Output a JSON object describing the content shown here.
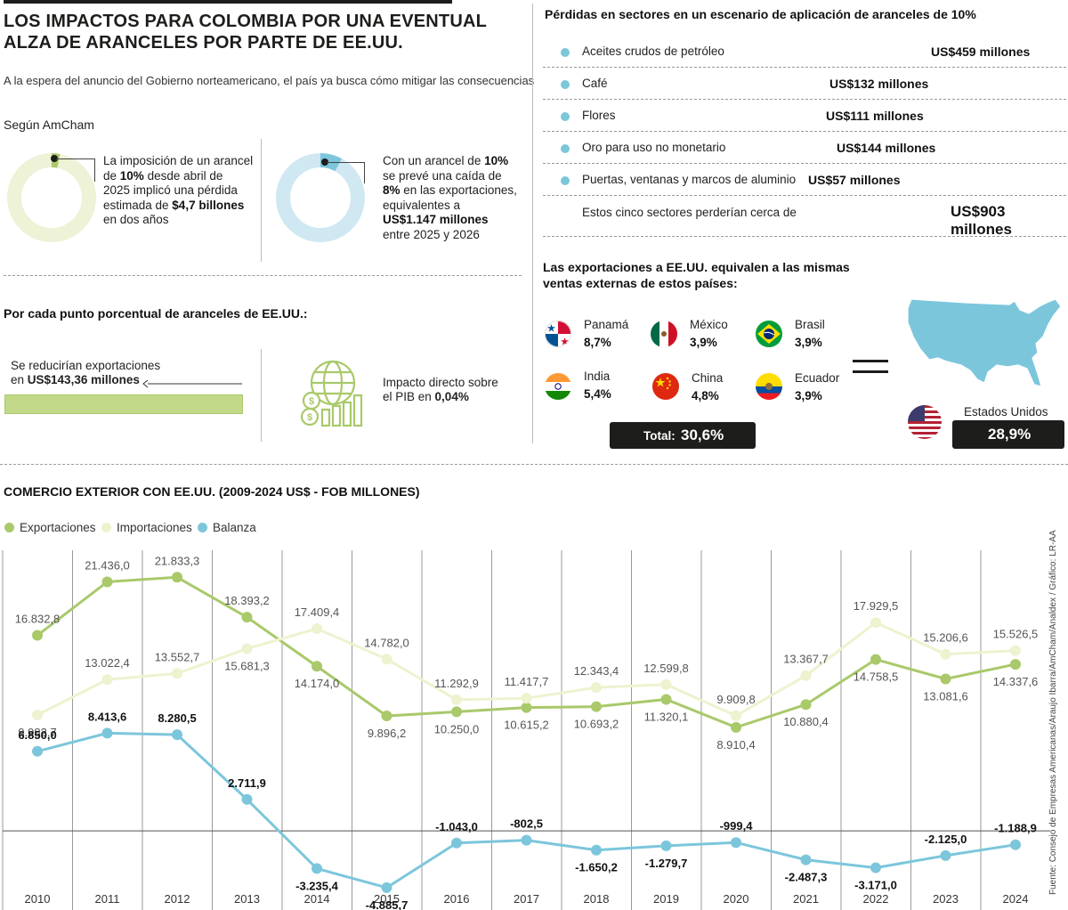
{
  "header": {
    "headline_line1": "LOS IMPACTOS PARA COLOMBIA POR UNA EVENTUAL",
    "headline_line2": "ALZA DE ARANCELES POR PARTE DE EE.UU.",
    "subtitle": "A la espera del anuncio del Gobierno norteamericano, el país ya busca cómo mitigar las consecuencias"
  },
  "amcham": {
    "label": "Según AmCham",
    "stat1": {
      "line1": "La imposición de un arancel",
      "line2_pre": "de ",
      "line2_bold": "10%",
      "line2_post": " desde abril de",
      "line3": "2025 implicó una pérdida",
      "line4_pre": "estimada de ",
      "line4_bold": "$4,7 billones",
      "line5": "en dos años",
      "fraction": 0.03,
      "color": "#eef2d6"
    },
    "stat2": {
      "line1_pre": "Con un arancel de ",
      "line1_bold": "10%",
      "line2": "se prevé una caída de",
      "line3_bold": "8%",
      "line3_post": " en las exportaciones,",
      "line4": "equivalentes a",
      "line5_bold": "US$1.147 millones",
      "line6": "entre 2025 y 2026",
      "fraction": 0.08,
      "color": "#cfe8f2"
    }
  },
  "per_point": {
    "title": "Por cada punto porcentual de aranceles de EE.UU.:",
    "exports_line1": "Se reducirían exportaciones",
    "exports_line2_pre": "en ",
    "exports_line2_bold": "US$143,36 millones",
    "gdp_line1": "Impacto directo sobre",
    "gdp_line2_pre": "el PIB en ",
    "gdp_line2_bold": "0,04%",
    "icon": "globe-dollar-bars-icon"
  },
  "sectors": {
    "title": "Pérdidas en sectores en un escenario de aplicación de aranceles de 10%",
    "items": [
      {
        "name": "Aceites crudos de petróleo",
        "value": "US$459 millones"
      },
      {
        "name": "Café",
        "value": "US$132 millones"
      },
      {
        "name": "Flores",
        "value": "US$111 millones"
      },
      {
        "name": "Oro para uso no monetario",
        "value": "US$144 millones"
      },
      {
        "name": "Puertas, ventanas y marcos de aluminio",
        "value": "US$57 millones"
      }
    ],
    "total_label": "Estos cinco sectores perderían cerca de",
    "total_value": "US$903 millones"
  },
  "countries": {
    "title_line1": "Las exportaciones a EE.UU. equivalen a las mismas",
    "title_line2": "ventas externas de estos países:",
    "items": [
      {
        "name": "Panamá",
        "pct": "8,7%",
        "flag": "panama-flag-icon"
      },
      {
        "name": "México",
        "pct": "3,9%",
        "flag": "mexico-flag-icon"
      },
      {
        "name": "Brasil",
        "pct": "3,9%",
        "flag": "brazil-flag-icon"
      },
      {
        "name": "India",
        "pct": "5,4%",
        "flag": "india-flag-icon"
      },
      {
        "name": "China",
        "pct": "4,8%",
        "flag": "china-flag-icon"
      },
      {
        "name": "Ecuador",
        "pct": "3,9%",
        "flag": "ecuador-flag-icon"
      }
    ],
    "total_label": "Total:",
    "total_value": "30,6%",
    "equals": "=",
    "usa_label": "Estados Unidos",
    "usa_value": "28,9%"
  },
  "chart_data": {
    "type": "line",
    "title": "COMERCIO EXTERIOR CON EE.UU. (2009-2024 US$ - FOB MILLONES)",
    "x": [
      "2010",
      "2011",
      "2012",
      "2013",
      "2014",
      "2015",
      "2016",
      "2017",
      "2018",
      "2019",
      "2020",
      "2021",
      "2022",
      "2023",
      "2024"
    ],
    "series": [
      {
        "name": "Exportaciones",
        "color": "#a9c96a",
        "values": [
          16832.8,
          21436.0,
          21833.3,
          18393.2,
          14174.0,
          9896.2,
          10250.0,
          10615.2,
          10693.2,
          11320.1,
          8910.4,
          10880.4,
          14758.5,
          13081.6,
          14337.6
        ],
        "labels": [
          "16.832,8",
          "21.436,0",
          "21.833,3",
          "18.393,2",
          "14.174,0",
          "9.896,2",
          "10.250,0",
          "10.615,2",
          "10.693,2",
          "11.320,1",
          "8.910,4",
          "10.880,4",
          "14.758,5",
          "13.081,6",
          "14.337,6"
        ]
      },
      {
        "name": "Importaciones",
        "color": "#eef2cf",
        "values": [
          9982.7,
          13022.4,
          13552.7,
          15681.3,
          17409.4,
          14782.0,
          11292.9,
          11417.7,
          12343.4,
          12599.8,
          9909.8,
          13367.7,
          17929.5,
          15206.6,
          15526.5
        ],
        "labels": [
          "9.982,7",
          "13.022,4",
          "13.552,7",
          "15.681,3",
          "17.409,4",
          "14.782,0",
          "11.292,9",
          "11.417,7",
          "12.343,4",
          "12.599,8",
          "9.909,8",
          "13.367,7",
          "17.929,5",
          "15.206,6",
          "15.526,5"
        ]
      },
      {
        "name": "Balanza",
        "color": "#7cc6dc",
        "values": [
          6850.0,
          8413.6,
          8280.5,
          2711.9,
          -3235.4,
          -4885.7,
          -1043.0,
          -802.5,
          -1650.2,
          -1279.7,
          -999.4,
          -2487.3,
          -3171.0,
          -2125.0,
          -1188.9
        ],
        "labels": [
          "6.850,0",
          "8.413,6",
          "8.280,5",
          "2.711,9",
          "-3.235,4",
          "-4.885,7",
          "-1.043,0",
          "-802,5",
          "-1.650,2",
          "-1.279,7",
          "-999,4",
          "-2.487,3",
          "-3.171,0",
          "-2.125,0",
          "-1.188,9"
        ]
      }
    ],
    "grid": "vertical",
    "legend_position": "top-left"
  },
  "source": "Fuente: Consejo de Empresas Americanas/Araujo Ibarra/AmCham/Analdex / Gráfico: LR-AA"
}
